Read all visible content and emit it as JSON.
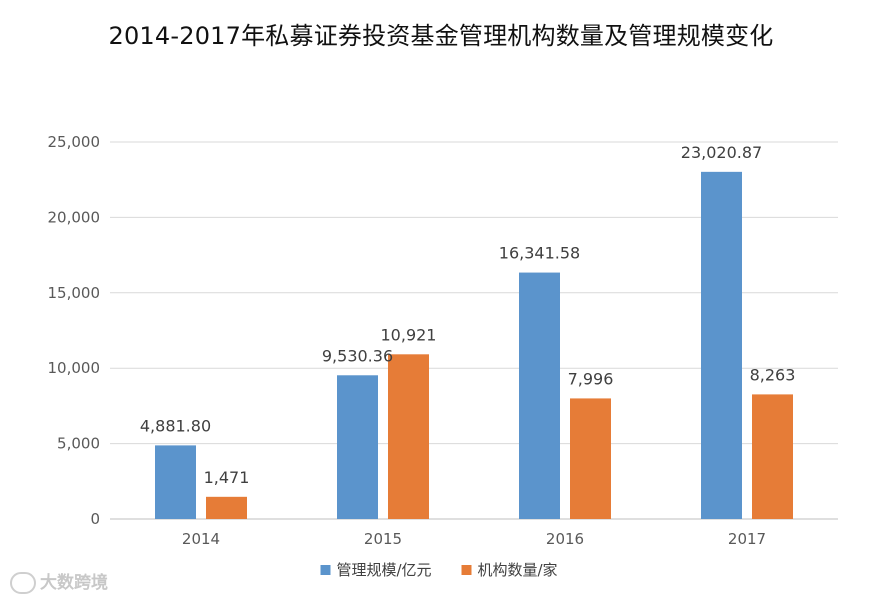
{
  "chart_data": {
    "type": "bar",
    "title": "2014-2017年私募证券投资基金管理机构数量及管理规模变化",
    "categories": [
      "2014",
      "2015",
      "2016",
      "2017"
    ],
    "series": [
      {
        "name": "管理规模/亿元",
        "values": [
          4881.8,
          9530.36,
          16341.58,
          23020.87
        ],
        "labels": [
          "4,881.80",
          "9,530.36",
          "16,341.58",
          "23,020.87"
        ],
        "color": "#5B94CC"
      },
      {
        "name": "机构数量/家",
        "values": [
          1471,
          10921,
          7996,
          8263
        ],
        "labels": [
          "1,471",
          "10,921",
          "7,996",
          "8,263"
        ],
        "color": "#E67C37"
      }
    ],
    "yticks": [
      "0",
      "5,000",
      "10,000",
      "15,000",
      "20,000",
      "25,000"
    ],
    "ylim": [
      0,
      25000
    ],
    "xlabel": "",
    "ylabel": "",
    "grid": true,
    "legend": "bottom-center"
  },
  "watermark": {
    "text": "大数跨境",
    "icon": "logo-mark-icon"
  }
}
